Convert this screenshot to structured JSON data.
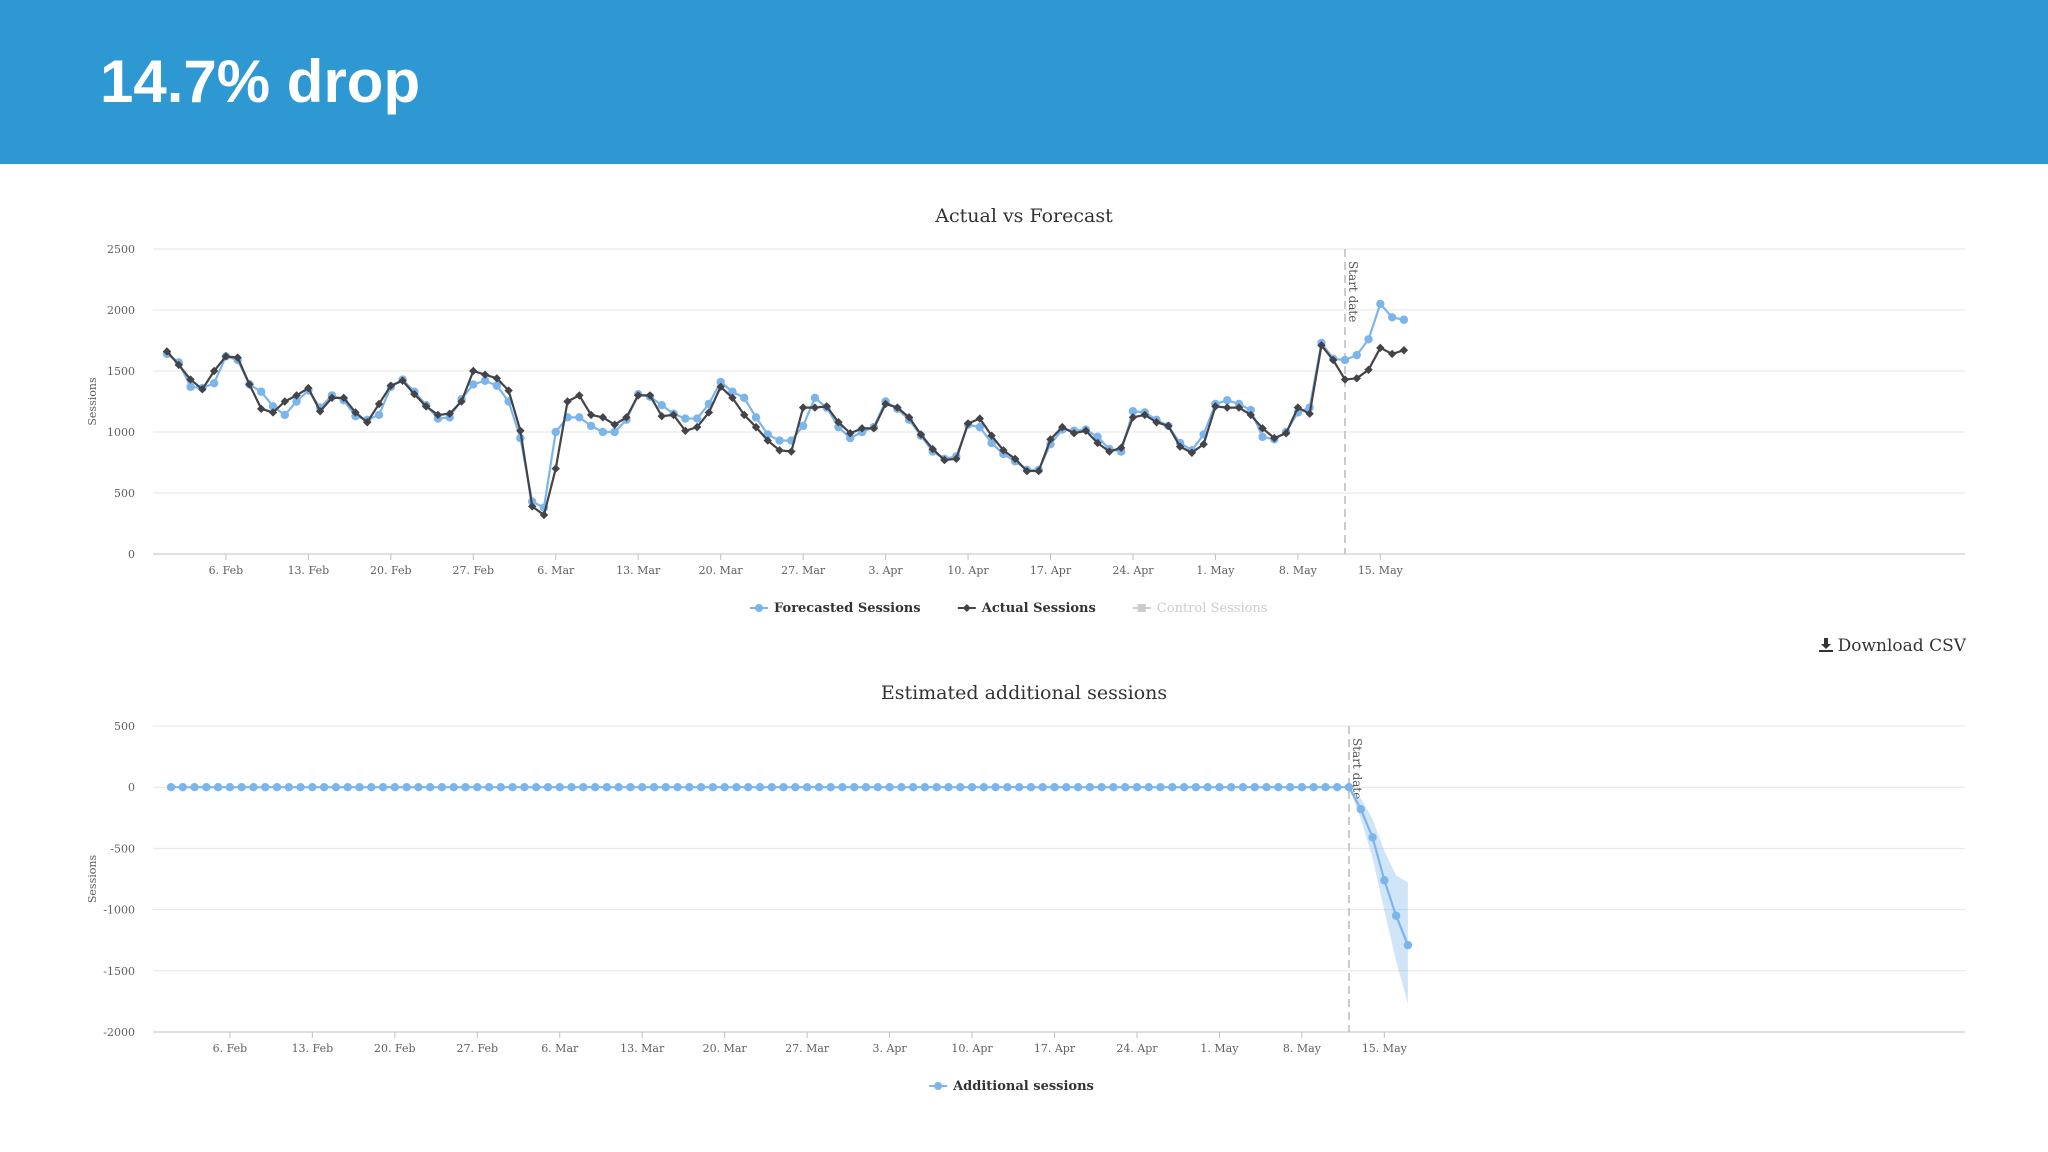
{
  "header": {
    "title": "14.7% drop"
  },
  "download": {
    "label": "Download CSV",
    "icon": "download-icon"
  },
  "colors": {
    "header_bg": "#2e98d3",
    "forecast": "#7cb5ec",
    "actual": "#434348",
    "control": "#cccccc",
    "band": "#7cb5ec"
  },
  "chart_data": [
    {
      "type": "line",
      "title": "Actual vs Forecast",
      "ylabel": "Sessions",
      "xlabel": "",
      "x_start": "2017-02-01",
      "x_ticks": [
        "6. Feb",
        "13. Feb",
        "20. Feb",
        "27. Feb",
        "6. Mar",
        "13. Mar",
        "20. Mar",
        "27. Mar",
        "3. Apr",
        "10. Apr",
        "17. Apr",
        "24. Apr",
        "1. May",
        "8. May",
        "15. May"
      ],
      "ylim": [
        0,
        2500
      ],
      "y_ticks": [
        0,
        500,
        1000,
        1500,
        2000,
        2500
      ],
      "grid": true,
      "legend_position": "bottom-center",
      "annotation": {
        "label": "Start date",
        "date": "2017-05-12"
      },
      "series": [
        {
          "name": "Forecasted Sessions",
          "values": [
            1640,
            1570,
            1370,
            1360,
            1400,
            1620,
            1590,
            1390,
            1330,
            1210,
            1140,
            1250,
            1340,
            1200,
            1300,
            1260,
            1130,
            1100,
            1140,
            1370,
            1430,
            1330,
            1220,
            1110,
            1120,
            1270,
            1390,
            1420,
            1380,
            1250,
            950,
            430,
            380,
            1000,
            1120,
            1120,
            1050,
            1000,
            1000,
            1100,
            1310,
            1290,
            1220,
            1150,
            1110,
            1110,
            1230,
            1410,
            1330,
            1280,
            1120,
            980,
            930,
            930,
            1050,
            1280,
            1200,
            1040,
            950,
            1000,
            1040,
            1250,
            1190,
            1100,
            970,
            840,
            780,
            800,
            1060,
            1040,
            910,
            820,
            760,
            690,
            690,
            900,
            1020,
            1010,
            1020,
            960,
            860,
            840,
            1170,
            1160,
            1100,
            1050,
            910,
            850,
            980,
            1230,
            1260,
            1230,
            1180,
            960,
            940,
            1000,
            1160,
            1200,
            1730,
            1600,
            1590,
            1630,
            1760,
            2050,
            1940,
            1920
          ]
        },
        {
          "name": "Actual Sessions",
          "values": [
            1660,
            1550,
            1430,
            1350,
            1500,
            1620,
            1610,
            1390,
            1190,
            1160,
            1250,
            1300,
            1360,
            1170,
            1280,
            1280,
            1160,
            1080,
            1230,
            1380,
            1420,
            1310,
            1210,
            1140,
            1150,
            1250,
            1500,
            1470,
            1440,
            1340,
            1010,
            390,
            320,
            700,
            1250,
            1300,
            1140,
            1120,
            1060,
            1120,
            1300,
            1300,
            1130,
            1140,
            1010,
            1040,
            1160,
            1370,
            1280,
            1140,
            1040,
            930,
            850,
            840,
            1200,
            1200,
            1210,
            1080,
            990,
            1030,
            1030,
            1230,
            1200,
            1120,
            980,
            860,
            770,
            780,
            1070,
            1110,
            970,
            850,
            780,
            680,
            680,
            940,
            1040,
            990,
            1010,
            910,
            840,
            870,
            1120,
            1140,
            1080,
            1050,
            880,
            830,
            900,
            1210,
            1200,
            1200,
            1140,
            1030,
            950,
            990,
            1200,
            1150,
            1710,
            1590,
            1430,
            1440,
            1510,
            1690,
            1640,
            1670
          ]
        },
        {
          "name": "Control Sessions",
          "values": []
        }
      ]
    },
    {
      "type": "area",
      "title": "Estimated additional sessions",
      "ylabel": "Sessions",
      "xlabel": "",
      "x_start": "2017-02-01",
      "x_ticks": [
        "6. Feb",
        "13. Feb",
        "20. Feb",
        "27. Feb",
        "6. Mar",
        "13. Mar",
        "20. Mar",
        "27. Mar",
        "3. Apr",
        "10. Apr",
        "17. Apr",
        "24. Apr",
        "1. May",
        "8. May",
        "15. May"
      ],
      "ylim": [
        -2000,
        500
      ],
      "y_ticks": [
        -2000,
        -1500,
        -1000,
        -500,
        0,
        500
      ],
      "grid": true,
      "legend_position": "bottom-center",
      "annotation": {
        "label": "Start date",
        "date": "2017-05-12"
      },
      "series": [
        {
          "name": "Additional sessions",
          "start_date": "2017-05-12",
          "values": [
            0,
            -180,
            -410,
            -760,
            -1050,
            -1290
          ],
          "band_low": [
            0,
            -260,
            -580,
            -1010,
            -1420,
            -1770
          ],
          "band_high": [
            0,
            -90,
            -260,
            -520,
            -720,
            -780
          ]
        }
      ]
    }
  ]
}
